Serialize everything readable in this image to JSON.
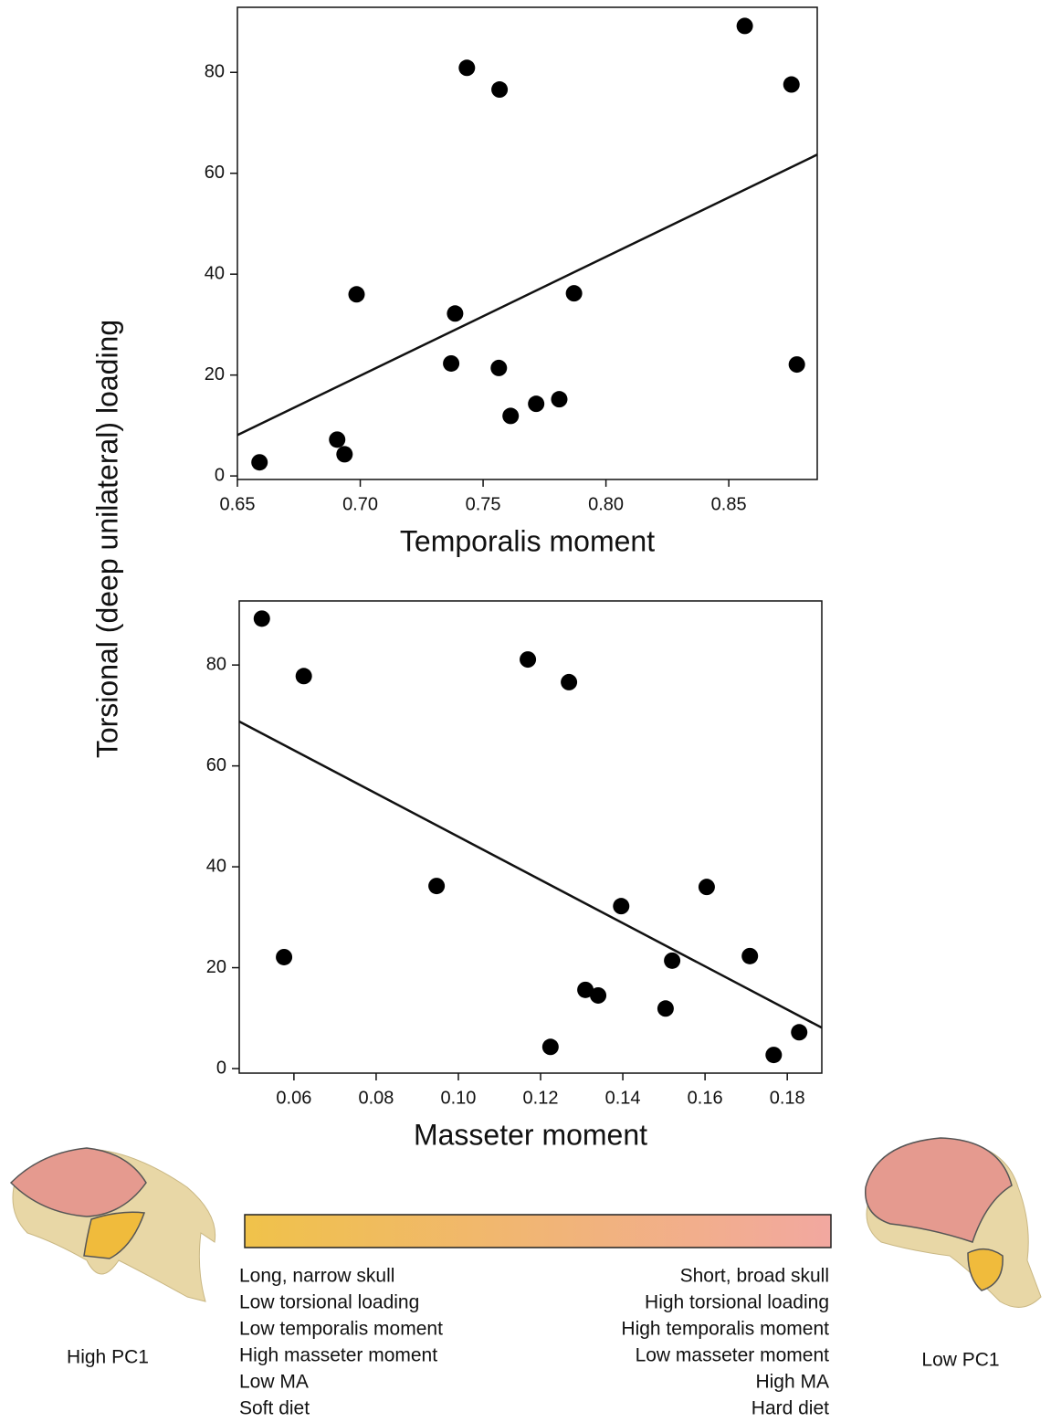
{
  "chart_data": [
    {
      "type": "scatter",
      "x_label": "Temporalis moment",
      "x": [
        0.659,
        0.6906,
        0.6936,
        0.6985,
        0.737,
        0.7386,
        0.7434,
        0.7564,
        0.7567,
        0.7612,
        0.7716,
        0.781,
        0.787,
        0.8565,
        0.8755,
        0.8777
      ],
      "values": [
        2.7,
        7.2,
        4.3,
        36.0,
        22.3,
        32.2,
        80.9,
        21.4,
        76.6,
        11.9,
        14.3,
        15.2,
        36.2,
        89.2,
        77.6,
        22.1
      ],
      "color": "#000000",
      "fit": {
        "x": [
          0.65,
          0.886
        ],
        "y": [
          8.1,
          63.7
        ]
      },
      "xlim": [
        0.65,
        0.886
      ],
      "ylim": [
        -0.7,
        92.9
      ],
      "xticks": [
        0.65,
        {
          "value": 0.7,
          "label": "0.70"
        },
        0.75,
        {
          "value": 0.8,
          "label": "0.80"
        },
        0.85
      ],
      "yticks": [
        0,
        20,
        40,
        60,
        80
      ]
    },
    {
      "type": "scatter",
      "x_label": "Masseter moment",
      "x": [
        0.0522,
        0.0624,
        0.0576,
        0.0947,
        0.1169,
        0.1224,
        0.1269,
        0.1309,
        0.134,
        0.1396,
        0.1504,
        0.152,
        0.1604,
        0.1709,
        0.1767,
        0.1829
      ],
      "values": [
        89.2,
        77.8,
        22.1,
        36.2,
        81.1,
        4.3,
        76.6,
        15.6,
        14.5,
        32.2,
        11.9,
        21.4,
        36.0,
        22.3,
        2.7,
        7.2
      ],
      "color": "#000000",
      "fit": {
        "x": [
          0.0467,
          0.1884
        ],
        "y": [
          68.8,
          8.1
        ]
      },
      "xlim": [
        0.0467,
        0.1884
      ],
      "ylim": [
        -0.9,
        92.7
      ],
      "xticks": [
        0.06,
        0.08,
        {
          "value": 0.1,
          "label": "0.10"
        },
        0.12,
        0.14,
        0.16,
        0.18
      ],
      "yticks": [
        0,
        20,
        40,
        60,
        80
      ]
    }
  ],
  "y_label": "Torsional (deep unilateral) loading",
  "scale": {
    "colors": [
      "#f0c24a",
      "#f2a8a0"
    ],
    "left_caption": "High PC1",
    "right_caption": "Low PC1",
    "left_lines": [
      "Long, narrow skull",
      "Low torsional loading",
      "Low temporalis moment",
      "High masseter moment",
      "Low MA",
      "Soft diet"
    ],
    "right_lines": [
      "Short, broad skull",
      "High torsional loading",
      "High temporalis moment",
      "Low masseter moment",
      "High MA",
      "Hard diet"
    ]
  }
}
